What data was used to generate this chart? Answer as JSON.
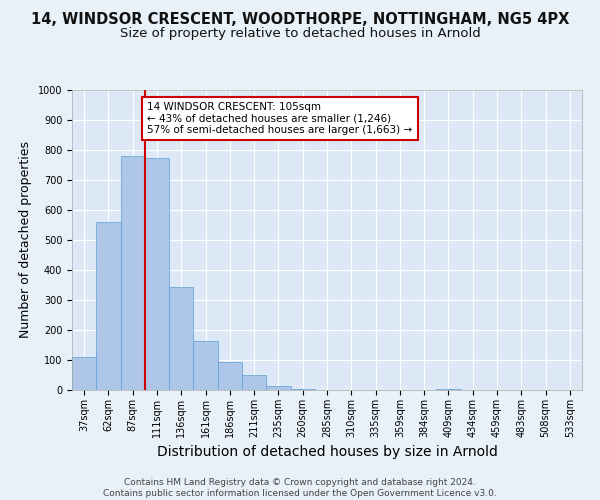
{
  "title": "14, WINDSOR CRESCENT, WOODTHORPE, NOTTINGHAM, NG5 4PX",
  "subtitle": "Size of property relative to detached houses in Arnold",
  "xlabel": "Distribution of detached houses by size in Arnold",
  "ylabel": "Number of detached properties",
  "categories": [
    "37sqm",
    "62sqm",
    "87sqm",
    "111sqm",
    "136sqm",
    "161sqm",
    "186sqm",
    "211sqm",
    "235sqm",
    "260sqm",
    "285sqm",
    "310sqm",
    "335sqm",
    "359sqm",
    "384sqm",
    "409sqm",
    "434sqm",
    "459sqm",
    "483sqm",
    "508sqm",
    "533sqm"
  ],
  "values": [
    110,
    560,
    780,
    775,
    345,
    165,
    95,
    50,
    12,
    5,
    0,
    0,
    0,
    0,
    0,
    3,
    0,
    0,
    0,
    0,
    0
  ],
  "bar_color": "#aec6e8",
  "bar_edge_color": "#5a9fd4",
  "vline_color": "#cc0000",
  "vline_x_index": 2.5,
  "annotation_text": "14 WINDSOR CRESCENT: 105sqm\n← 43% of detached houses are smaller (1,246)\n57% of semi-detached houses are larger (1,663) →",
  "annotation_box_color": "#cc0000",
  "annotation_box_facecolor": "#ffffff",
  "ylim": [
    0,
    1000
  ],
  "yticks": [
    0,
    100,
    200,
    300,
    400,
    500,
    600,
    700,
    800,
    900,
    1000
  ],
  "footer": "Contains HM Land Registry data © Crown copyright and database right 2024.\nContains public sector information licensed under the Open Government Licence v3.0.",
  "bg_color": "#e8f0f8",
  "plot_bg_color": "#dce8f5",
  "grid_color": "#ffffff",
  "title_fontsize": 10.5,
  "subtitle_fontsize": 9.5,
  "xlabel_fontsize": 10,
  "ylabel_fontsize": 9,
  "tick_fontsize": 7,
  "annotation_fontsize": 7.5,
  "footer_fontsize": 6.5
}
